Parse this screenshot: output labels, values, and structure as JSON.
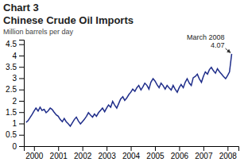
{
  "chart_data": {
    "type": "line",
    "title": "Chart 3",
    "subtitle": "Chinese Crude Oil Imports",
    "y_label": "Million barrels per day",
    "color": "#1f2d8a",
    "grid": false,
    "xlim": [
      1999.58,
      2008.45
    ],
    "xticks": [
      2000,
      2001,
      2002,
      2003,
      2004,
      2005,
      2006,
      2007,
      2008
    ],
    "ylim": [
      0,
      4.7
    ],
    "yticks": [
      0,
      0.5,
      1,
      1.5,
      2,
      2.5,
      3,
      3.5,
      4,
      4.5
    ],
    "annotations": [
      {
        "text": "March 2008\n4.07",
        "x": 2008.17,
        "y": 4.07
      }
    ],
    "x": [
      1999.67,
      1999.75,
      1999.83,
      1999.92,
      2000.0,
      2000.08,
      2000.17,
      2000.25,
      2000.33,
      2000.42,
      2000.5,
      2000.58,
      2000.67,
      2000.75,
      2000.83,
      2000.92,
      2001.0,
      2001.08,
      2001.17,
      2001.25,
      2001.33,
      2001.42,
      2001.5,
      2001.58,
      2001.67,
      2001.75,
      2001.83,
      2001.92,
      2002.0,
      2002.08,
      2002.17,
      2002.25,
      2002.33,
      2002.42,
      2002.5,
      2002.58,
      2002.67,
      2002.75,
      2002.83,
      2002.92,
      2003.0,
      2003.08,
      2003.17,
      2003.25,
      2003.33,
      2003.42,
      2003.5,
      2003.58,
      2003.67,
      2003.75,
      2003.83,
      2003.92,
      2004.0,
      2004.08,
      2004.17,
      2004.25,
      2004.33,
      2004.42,
      2004.5,
      2004.58,
      2004.67,
      2004.75,
      2004.83,
      2004.92,
      2005.0,
      2005.08,
      2005.17,
      2005.25,
      2005.33,
      2005.42,
      2005.5,
      2005.58,
      2005.67,
      2005.75,
      2005.83,
      2005.92,
      2006.0,
      2006.08,
      2006.17,
      2006.25,
      2006.33,
      2006.42,
      2006.5,
      2006.58,
      2006.67,
      2006.75,
      2006.83,
      2006.92,
      2007.0,
      2007.08,
      2007.17,
      2007.25,
      2007.33,
      2007.42,
      2007.5,
      2007.58,
      2007.67,
      2007.75,
      2007.83,
      2007.92,
      2008.0,
      2008.08,
      2008.17
    ],
    "values": [
      1.05,
      1.12,
      1.25,
      1.4,
      1.55,
      1.68,
      1.55,
      1.72,
      1.58,
      1.62,
      1.48,
      1.55,
      1.68,
      1.62,
      1.5,
      1.38,
      1.32,
      1.18,
      1.08,
      1.22,
      1.08,
      0.98,
      0.88,
      1.02,
      1.18,
      1.28,
      1.12,
      0.98,
      1.08,
      1.18,
      1.32,
      1.48,
      1.38,
      1.28,
      1.42,
      1.32,
      1.48,
      1.58,
      1.68,
      1.52,
      1.68,
      1.82,
      1.72,
      1.98,
      1.82,
      1.68,
      1.88,
      2.08,
      2.18,
      2.02,
      2.12,
      2.28,
      2.38,
      2.52,
      2.42,
      2.58,
      2.68,
      2.48,
      2.62,
      2.78,
      2.68,
      2.52,
      2.82,
      2.98,
      2.88,
      2.72,
      2.58,
      2.78,
      2.68,
      2.52,
      2.68,
      2.58,
      2.48,
      2.68,
      2.52,
      2.38,
      2.58,
      2.72,
      2.58,
      2.82,
      2.98,
      2.78,
      2.68,
      3.02,
      3.08,
      3.18,
      2.98,
      2.82,
      3.08,
      3.28,
      3.18,
      3.38,
      3.48,
      3.32,
      3.22,
      3.42,
      3.28,
      3.18,
      3.08,
      2.98,
      3.12,
      3.28,
      4.07
    ]
  }
}
